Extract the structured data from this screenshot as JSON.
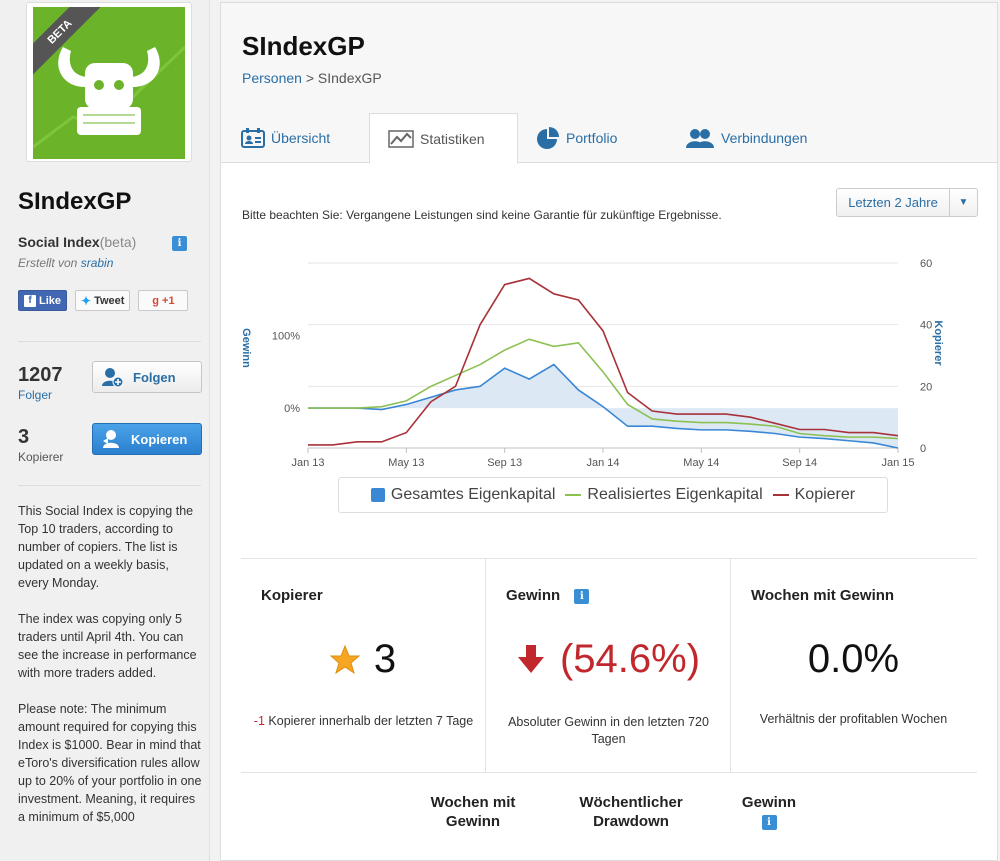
{
  "profile": {
    "badge": "BETA",
    "name": "SIndexGP",
    "type": "Social Index",
    "type_suffix": "(beta)",
    "created_by_label": "Erstellt von",
    "created_by_user": "srabin",
    "social": {
      "like": "Like",
      "tweet": "Tweet",
      "gplus": "+1"
    },
    "followers_count": "1207",
    "followers_label": "Folger",
    "follow_button": "Folgen",
    "copiers_count": "3",
    "copiers_label": "Kopierer",
    "copy_button": "Kopieren",
    "description": [
      "This Social Index is copying the Top 10 traders, according to number of copiers. The list is updated on a weekly basis, every Monday.",
      "The index was copying only 5 traders until April 4th. You can see the increase in performance with more traders added.",
      "Please note: The minimum amount required for copying this Index is $1000. Bear in mind that eToro's diversification rules allow up to 20% of your portfolio in one investment. Meaning, it requires a minimum of $5,000"
    ]
  },
  "header": {
    "title": "SIndexGP",
    "breadcrumb_link": "Personen",
    "breadcrumb_sep": ">",
    "breadcrumb_current": "SIndexGP"
  },
  "tabs": [
    {
      "label": "Übersicht",
      "icon": "overview-icon"
    },
    {
      "label": "Statistiken",
      "icon": "chart-icon"
    },
    {
      "label": "Portfolio",
      "icon": "pie-icon"
    },
    {
      "label": "Verbindungen",
      "icon": "people-icon"
    }
  ],
  "period_select": {
    "value": "Letzten 2 Jahre"
  },
  "disclaimer": "Bitte beachten Sie: Vergangene Leistungen sind keine Garantie für zukünftige Ergebnisse.",
  "chart_data": {
    "type": "line",
    "x": [
      "Jan 13",
      "Feb 13",
      "Mar 13",
      "Apr 13",
      "May 13",
      "Jun 13",
      "Jul 13",
      "Aug 13",
      "Sep 13",
      "Oct 13",
      "Nov 13",
      "Dec 13",
      "Jan 14",
      "Feb 14",
      "Mar 14",
      "Apr 14",
      "May 14",
      "Jun 14",
      "Jul 14",
      "Aug 14",
      "Sep 14",
      "Oct 14",
      "Nov 14",
      "Dec 14",
      "Jan 15"
    ],
    "x_tick_labels": [
      "Jan 13",
      "May 13",
      "Sep 13",
      "Jan 14",
      "May 14",
      "Sep 14",
      "Jan 15"
    ],
    "y_left_label": "Gewinn",
    "y_left_ticks": [
      "0%",
      "100%"
    ],
    "y_left_range": [
      -55,
      200
    ],
    "y_right_label": "Kopierer",
    "y_right_ticks": [
      0,
      20,
      40,
      60
    ],
    "y_right_range": [
      0,
      60
    ],
    "grid": true,
    "series": [
      {
        "name": "Gesamtes Eigenkapital",
        "axis": "left",
        "color": "#3a87d4",
        "values": [
          0,
          0,
          0,
          -2,
          5,
          15,
          25,
          30,
          55,
          40,
          60,
          25,
          2,
          -25,
          -25,
          -28,
          -30,
          -30,
          -32,
          -35,
          -40,
          -42,
          -45,
          -48,
          -55
        ]
      },
      {
        "name": "Realisiertes Eigenkapital",
        "axis": "left",
        "color": "#8cc152",
        "values": [
          0,
          0,
          0,
          2,
          10,
          30,
          45,
          60,
          80,
          95,
          85,
          90,
          50,
          5,
          -15,
          -18,
          -20,
          -20,
          -22,
          -25,
          -35,
          -38,
          -40,
          -40,
          -42
        ]
      },
      {
        "name": "Kopierer",
        "axis": "right",
        "color": "#a8323a",
        "values": [
          1,
          1,
          2,
          2,
          5,
          15,
          20,
          40,
          53,
          55,
          50,
          48,
          38,
          18,
          12,
          11,
          11,
          11,
          10,
          8,
          6,
          6,
          5,
          5,
          4
        ]
      }
    ]
  },
  "stats": {
    "copiers": {
      "title": "Kopierer",
      "value": "3",
      "delta": "-1",
      "delta_text": "Kopierer innerhalb der letzten 7 Tage"
    },
    "gain": {
      "title": "Gewinn",
      "value": "(54.6%)",
      "sub": "Absoluter Gewinn in den letzten 720 Tagen"
    },
    "weeks": {
      "title": "Wochen mit Gewinn",
      "value": "0.0%",
      "sub": "Verhältnis der profitablen Wochen"
    }
  },
  "bottom_headers": {
    "weeks": "Wochen mit Gewinn",
    "drawdown": "Wöchentlicher Drawdown",
    "gain": "Gewinn"
  }
}
